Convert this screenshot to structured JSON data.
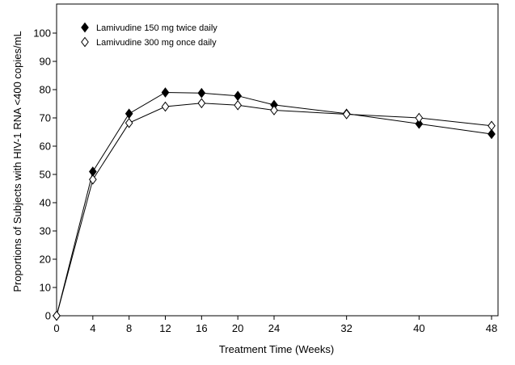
{
  "chart_data": {
    "type": "line",
    "xlabel": "Treatment Time (Weeks)",
    "ylabel": "Proportions of Subjects with HIV-1 RNA <400 copies/mL",
    "xlim": [
      0,
      48
    ],
    "ylim": [
      0,
      100
    ],
    "x_ticks": [
      "0",
      "4",
      "8",
      "12",
      "16",
      "20",
      "24",
      "32",
      "40",
      "48"
    ],
    "y_ticks": [
      "0",
      "10",
      "20",
      "30",
      "40",
      "50",
      "60",
      "70",
      "80",
      "90",
      "100"
    ],
    "grid": false,
    "legend": "top-left",
    "x": [
      0,
      4,
      8,
      12,
      16,
      20,
      24,
      32,
      40,
      48
    ],
    "series": [
      {
        "name": "Lamivudine 150 mg twice daily",
        "marker": "filled-diamond",
        "values": [
          0,
          51,
          71.5,
          79,
          78.8,
          77.8,
          74.6,
          71.5,
          67.9,
          64.3
        ]
      },
      {
        "name": "Lamivudine 300 mg once daily",
        "marker": "open-diamond",
        "values": [
          0,
          48.2,
          68.2,
          74,
          75.2,
          74.5,
          72.7,
          71.3,
          70,
          67.2
        ]
      }
    ],
    "colors": {
      "line": "#000000",
      "filled_marker": "#000000",
      "open_marker_fill": "#ffffff"
    }
  }
}
